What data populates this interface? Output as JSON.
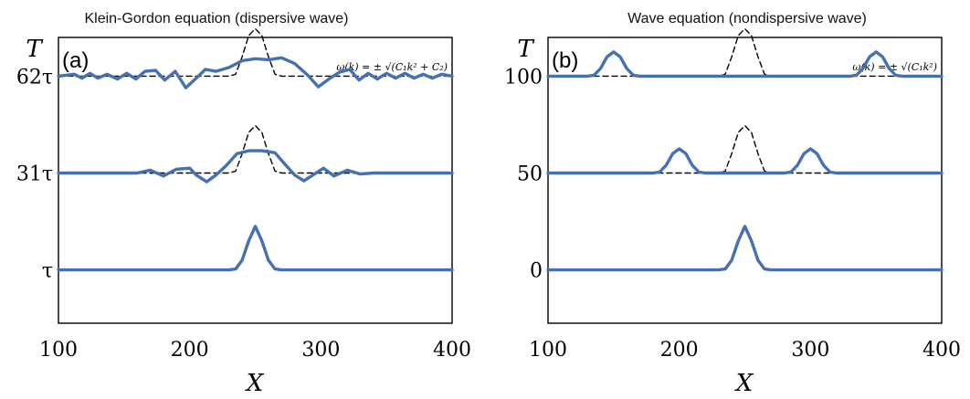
{
  "chart_data": [
    {
      "type": "line",
      "title": "Klein-Gordon equation (dispersive wave)",
      "panel_label": "(a)",
      "formula": "ω(k) = ± √(C₁k² + C₂)",
      "xlabel": "X",
      "ylabel": "T",
      "xlim": [
        100,
        400
      ],
      "xticks": [
        "100",
        "200",
        "300",
        "400"
      ],
      "yticks": [
        "τ",
        "31τ",
        "62τ"
      ],
      "yticks_level": [
        0,
        1,
        2
      ],
      "ylim": [
        -0.55,
        2.4
      ],
      "colors": {
        "solid": "#4571b0",
        "dashed": "#000000"
      },
      "series": [
        {
          "role": "solid",
          "level": 0,
          "points": [
            [
              100,
              0
            ],
            [
              230,
              0
            ],
            [
              235,
              0.01
            ],
            [
              240,
              0.1
            ],
            [
              245,
              0.3
            ],
            [
              250,
              0.45
            ],
            [
              255,
              0.3
            ],
            [
              260,
              0.1
            ],
            [
              265,
              0.01
            ],
            [
              270,
              0
            ],
            [
              400,
              0
            ]
          ]
        },
        {
          "role": "dashed",
          "level": 1,
          "points": [
            [
              100,
              0
            ],
            [
              230,
              0
            ],
            [
              235,
              0.02
            ],
            [
              240,
              0.2
            ],
            [
              245,
              0.42
            ],
            [
              250,
              0.49
            ],
            [
              255,
              0.42
            ],
            [
              260,
              0.2
            ],
            [
              265,
              0.02
            ],
            [
              270,
              0
            ],
            [
              400,
              0
            ]
          ]
        },
        {
          "role": "solid",
          "level": 1,
          "points": [
            [
              100,
              0
            ],
            [
              160,
              0
            ],
            [
              170,
              0.03
            ],
            [
              180,
              -0.03
            ],
            [
              190,
              0.04
            ],
            [
              200,
              0.05
            ],
            [
              205,
              -0.02
            ],
            [
              213,
              -0.09
            ],
            [
              220,
              -0.02
            ],
            [
              228,
              0.08
            ],
            [
              236,
              0.2
            ],
            [
              245,
              0.23
            ],
            [
              255,
              0.23
            ],
            [
              265,
              0.21
            ],
            [
              272,
              0.1
            ],
            [
              280,
              -0.02
            ],
            [
              287,
              -0.08
            ],
            [
              294,
              -0.02
            ],
            [
              302,
              0.05
            ],
            [
              310,
              -0.03
            ],
            [
              320,
              0.03
            ],
            [
              330,
              -0.01
            ],
            [
              340,
              0
            ],
            [
              400,
              0
            ]
          ]
        },
        {
          "role": "dashed",
          "level": 2,
          "points": [
            [
              100,
              0
            ],
            [
              230,
              0
            ],
            [
              235,
              0.02
            ],
            [
              240,
              0.2
            ],
            [
              245,
              0.42
            ],
            [
              250,
              0.49
            ],
            [
              255,
              0.42
            ],
            [
              260,
              0.2
            ],
            [
              265,
              0.02
            ],
            [
              270,
              0
            ],
            [
              400,
              0
            ]
          ]
        },
        {
          "role": "solid",
          "level": 2,
          "points": [
            [
              100,
              0
            ],
            [
              112,
              0.02
            ],
            [
              118,
              -0.02
            ],
            [
              124,
              0.03
            ],
            [
              130,
              -0.02
            ],
            [
              137,
              0.02
            ],
            [
              145,
              -0.03
            ],
            [
              152,
              0.03
            ],
            [
              159,
              -0.03
            ],
            [
              166,
              0.05
            ],
            [
              174,
              0.06
            ],
            [
              181,
              -0.04
            ],
            [
              189,
              0.05
            ],
            [
              197,
              -0.12
            ],
            [
              205,
              -0.02
            ],
            [
              212,
              0.07
            ],
            [
              220,
              0.05
            ],
            [
              230,
              0.09
            ],
            [
              240,
              0.16
            ],
            [
              250,
              0.18
            ],
            [
              260,
              0.17
            ],
            [
              270,
              0.19
            ],
            [
              280,
              0.13
            ],
            [
              290,
              0.01
            ],
            [
              298,
              -0.11
            ],
            [
              306,
              -0.03
            ],
            [
              314,
              0.04
            ],
            [
              322,
              0.07
            ],
            [
              329,
              -0.04
            ],
            [
              336,
              0.03
            ],
            [
              343,
              -0.03
            ],
            [
              350,
              0.03
            ],
            [
              357,
              -0.02
            ],
            [
              364,
              0.03
            ],
            [
              371,
              -0.02
            ],
            [
              378,
              0.02
            ],
            [
              385,
              -0.02
            ],
            [
              392,
              0.02
            ],
            [
              400,
              0
            ]
          ]
        }
      ]
    },
    {
      "type": "line",
      "title": "Wave equation (nondispersive wave)",
      "panel_label": "(b)",
      "formula": "ω(k) = ± √(C₁k²)",
      "xlabel": "X",
      "ylabel": "T",
      "xlim": [
        100,
        400
      ],
      "xticks": [
        "100",
        "200",
        "300",
        "400"
      ],
      "yticks": [
        "0",
        "50",
        "100"
      ],
      "yticks_level": [
        0,
        1,
        2
      ],
      "ylim": [
        -0.55,
        2.4
      ],
      "colors": {
        "solid": "#4571b0",
        "dashed": "#000000"
      },
      "series": [
        {
          "role": "solid",
          "level": 0,
          "points": [
            [
              100,
              0
            ],
            [
              230,
              0
            ],
            [
              235,
              0.01
            ],
            [
              240,
              0.1
            ],
            [
              245,
              0.3
            ],
            [
              250,
              0.45
            ],
            [
              255,
              0.3
            ],
            [
              260,
              0.1
            ],
            [
              265,
              0.01
            ],
            [
              270,
              0
            ],
            [
              400,
              0
            ]
          ]
        },
        {
          "role": "dashed",
          "level": 1,
          "points": [
            [
              100,
              0
            ],
            [
              230,
              0
            ],
            [
              235,
              0.02
            ],
            [
              240,
              0.2
            ],
            [
              245,
              0.42
            ],
            [
              250,
              0.49
            ],
            [
              255,
              0.42
            ],
            [
              260,
              0.2
            ],
            [
              265,
              0.02
            ],
            [
              270,
              0
            ],
            [
              400,
              0
            ]
          ]
        },
        {
          "role": "solid",
          "level": 1,
          "points": [
            [
              100,
              0
            ],
            [
              180,
              0
            ],
            [
              185,
              0.01
            ],
            [
              190,
              0.08
            ],
            [
              195,
              0.2
            ],
            [
              200,
              0.25
            ],
            [
              205,
              0.2
            ],
            [
              210,
              0.08
            ],
            [
              215,
              0.01
            ],
            [
              220,
              0
            ],
            [
              280,
              0
            ],
            [
              285,
              0.01
            ],
            [
              290,
              0.08
            ],
            [
              295,
              0.2
            ],
            [
              300,
              0.25
            ],
            [
              305,
              0.2
            ],
            [
              310,
              0.08
            ],
            [
              315,
              0.01
            ],
            [
              320,
              0
            ],
            [
              400,
              0
            ]
          ]
        },
        {
          "role": "dashed",
          "level": 2,
          "points": [
            [
              100,
              0
            ],
            [
              230,
              0
            ],
            [
              235,
              0.02
            ],
            [
              240,
              0.2
            ],
            [
              245,
              0.42
            ],
            [
              250,
              0.49
            ],
            [
              255,
              0.42
            ],
            [
              260,
              0.2
            ],
            [
              265,
              0.02
            ],
            [
              270,
              0
            ],
            [
              400,
              0
            ]
          ]
        },
        {
          "role": "solid",
          "level": 2,
          "points": [
            [
              100,
              0
            ],
            [
              130,
              0
            ],
            [
              135,
              0.01
            ],
            [
              140,
              0.08
            ],
            [
              145,
              0.2
            ],
            [
              150,
              0.25
            ],
            [
              155,
              0.2
            ],
            [
              160,
              0.08
            ],
            [
              165,
              0.01
            ],
            [
              170,
              0
            ],
            [
              330,
              0
            ],
            [
              335,
              0.01
            ],
            [
              340,
              0.08
            ],
            [
              345,
              0.2
            ],
            [
              350,
              0.25
            ],
            [
              355,
              0.2
            ],
            [
              360,
              0.08
            ],
            [
              365,
              0.01
            ],
            [
              370,
              0
            ],
            [
              400,
              0
            ]
          ]
        }
      ]
    }
  ]
}
